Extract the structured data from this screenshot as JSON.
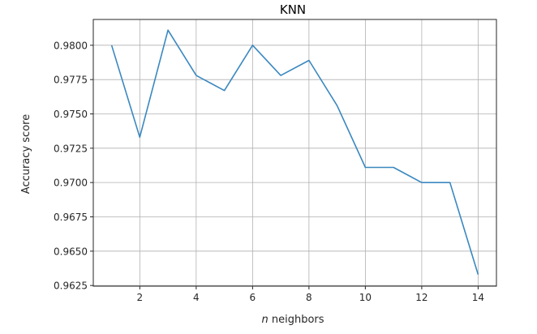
{
  "chart_data": {
    "type": "line",
    "title": "KNN",
    "xlabel_italic": "n",
    "xlabel_rest": " neighbors",
    "ylabel": "Accuracy score",
    "xlim": [
      0.35,
      14.65
    ],
    "ylim": [
      0.96245,
      0.98188
    ],
    "xticks": [
      2,
      4,
      6,
      8,
      10,
      12,
      14
    ],
    "xtick_labels": [
      "2",
      "4",
      "6",
      "8",
      "10",
      "12",
      "14"
    ],
    "yticks": [
      0.9625,
      0.965,
      0.9675,
      0.97,
      0.9725,
      0.975,
      0.9775,
      0.98
    ],
    "ytick_labels": [
      "0.9625",
      "0.9650",
      "0.9675",
      "0.9700",
      "0.9725",
      "0.9750",
      "0.9775",
      "0.9800"
    ],
    "grid": true,
    "line_color": "#3a88c0",
    "series": [
      {
        "x": [
          1,
          2,
          3,
          4,
          5,
          6,
          7,
          8,
          9,
          10,
          11,
          12,
          13,
          14
        ],
        "values": [
          0.98,
          0.9733,
          0.9811,
          0.9778,
          0.9767,
          0.98,
          0.9778,
          0.9789,
          0.9756,
          0.9711,
          0.9711,
          0.97,
          0.97,
          0.9633
        ]
      }
    ]
  }
}
